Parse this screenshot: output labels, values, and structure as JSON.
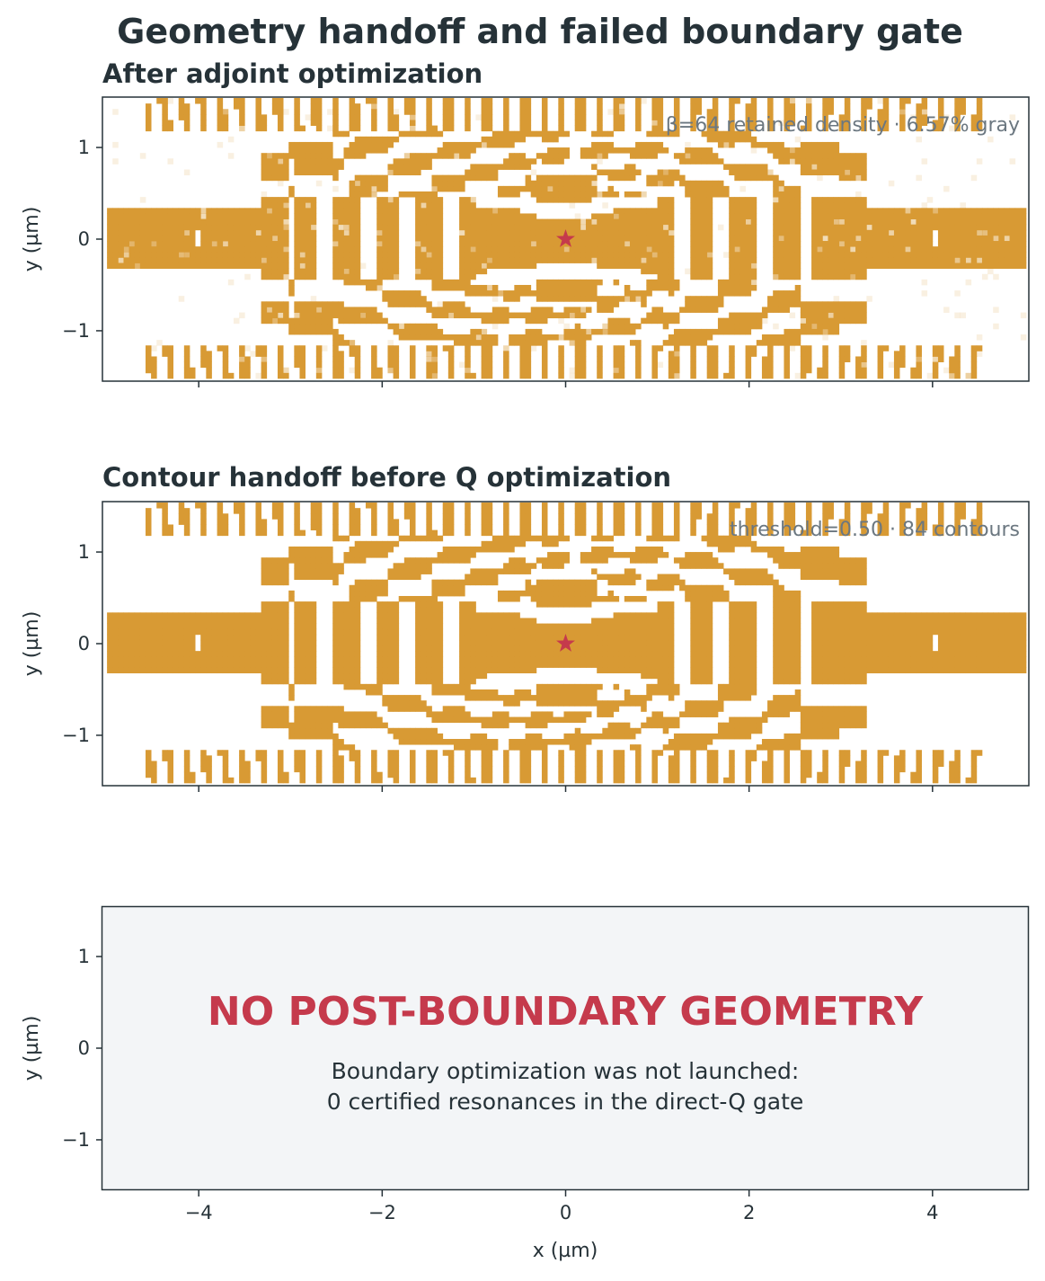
{
  "figure": {
    "title": "Geometry handoff and failed boundary gate",
    "xlabel": "x (µm)",
    "ylabel": "y (µm)"
  },
  "panels": [
    {
      "id": "adjoint",
      "title": "After adjoint optimization",
      "annotation": "β=64 retained density · 6.57% gray",
      "kind": "density"
    },
    {
      "id": "contour",
      "title": "Contour handoff before Q optimization",
      "annotation": "threshold=0.50 · 84 contours",
      "kind": "binary"
    },
    {
      "id": "boundary",
      "title": "",
      "kind": "placeholder",
      "banner": "NO POST-BOUNDARY GEOMETRY",
      "message_line1": "Boundary optimization was not launched:",
      "message_line2": "0 certified resonances in the direct-Q gate"
    }
  ],
  "chart_data": [
    {
      "type": "heatmap",
      "title": "After adjoint optimization",
      "xlabel": "",
      "ylabel": "y (µm)",
      "xlim": [
        -5.05,
        5.05
      ],
      "ylim": [
        -1.55,
        1.55
      ],
      "xticks": [
        -4,
        -2,
        0,
        2,
        4
      ],
      "yticks": [
        -1,
        0,
        1
      ],
      "colormap": [
        "#ffffff",
        "#d89a34"
      ],
      "annotation": "β=64 retained density · 6.57% gray",
      "marker": {
        "type": "star",
        "x": 0,
        "y": 0,
        "color": "#c53a4c"
      },
      "gray_fraction_percent": 6.57,
      "beta": 64,
      "structure": {
        "waveguide_half_width": 0.35,
        "waveguide_extent": [
          -5.0,
          5.0
        ],
        "mirror_band_x": [
          -3.0,
          3.0
        ],
        "mirror_band_half_width": 0.5,
        "mirror_bar_period": 0.45,
        "cell_size": 0.06
      }
    },
    {
      "type": "heatmap",
      "title": "Contour handoff before Q optimization",
      "xlabel": "",
      "ylabel": "y (µm)",
      "xlim": [
        -5.05,
        5.05
      ],
      "ylim": [
        -1.55,
        1.55
      ],
      "xticks": [
        -4,
        -2,
        0,
        2,
        4
      ],
      "yticks": [
        -1,
        0,
        1
      ],
      "colormap": [
        "#ffffff",
        "#d89a34"
      ],
      "annotation": "threshold=0.50 · 84 contours",
      "marker": {
        "type": "star",
        "x": 0,
        "y": 0,
        "color": "#c53a4c"
      },
      "threshold": 0.5,
      "contour_count": 84
    },
    {
      "type": "table",
      "title": "",
      "xlabel": "x (µm)",
      "ylabel": "y (µm)",
      "xlim": [
        -5.05,
        5.05
      ],
      "ylim": [
        -1.55,
        1.55
      ],
      "xticks": [
        -4,
        -2,
        0,
        2,
        4
      ],
      "yticks": [
        -1,
        0,
        1
      ],
      "background": "#f3f5f7",
      "banner": "NO POST-BOUNDARY GEOMETRY",
      "certified_resonances": 0
    }
  ]
}
